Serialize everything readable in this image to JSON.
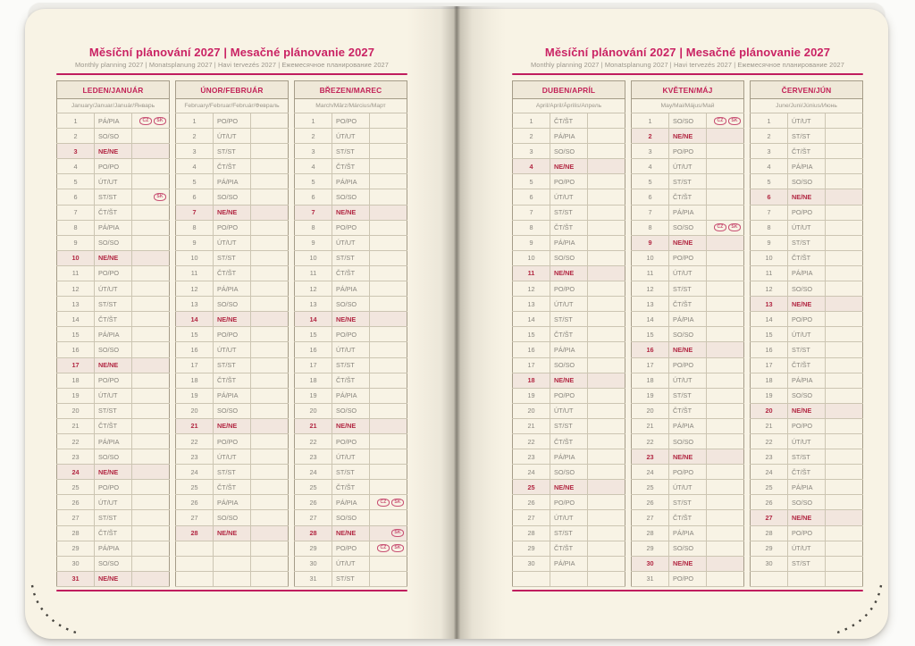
{
  "spread": {
    "title": "Měsíční plánování 2027 | Mesačné plánovanie 2027",
    "subtitle": "Monthly planning 2027 | Monatsplanung 2027 | Havi tervezés 2027 | Ежемесячное планирование 2027"
  },
  "colors": {
    "accent_pink": "#c01d5e",
    "month_header_red": "#c22257",
    "sunday_red": "#b22843",
    "page_cream": "#f8f3e5",
    "header_beige": "#efe8d8",
    "sunday_row_rose": "#f2e6de",
    "text_gray": "#87847c",
    "holiday_icon_pink": "#c85073"
  },
  "months": [
    {
      "name": "LEDEN/JANUÁR",
      "subtitle": "January/Januar/Január/Январь",
      "page": "left",
      "empty_rows": 0,
      "days": [
        {
          "n": 1,
          "d": "PÁ/PIA",
          "ic": [
            "CZ",
            "SK"
          ]
        },
        {
          "n": 2,
          "d": "SO/SO"
        },
        {
          "n": 3,
          "d": "NE/NE"
        },
        {
          "n": 4,
          "d": "PO/PO"
        },
        {
          "n": 5,
          "d": "ÚT/UT"
        },
        {
          "n": 6,
          "d": "ST/ST",
          "ic": [
            "SK"
          ]
        },
        {
          "n": 7,
          "d": "ČT/ŠT"
        },
        {
          "n": 8,
          "d": "PÁ/PIA"
        },
        {
          "n": 9,
          "d": "SO/SO"
        },
        {
          "n": 10,
          "d": "NE/NE"
        },
        {
          "n": 11,
          "d": "PO/PO"
        },
        {
          "n": 12,
          "d": "ÚT/UT"
        },
        {
          "n": 13,
          "d": "ST/ST"
        },
        {
          "n": 14,
          "d": "ČT/ŠT"
        },
        {
          "n": 15,
          "d": "PÁ/PIA"
        },
        {
          "n": 16,
          "d": "SO/SO"
        },
        {
          "n": 17,
          "d": "NE/NE"
        },
        {
          "n": 18,
          "d": "PO/PO"
        },
        {
          "n": 19,
          "d": "ÚT/UT"
        },
        {
          "n": 20,
          "d": "ST/ST"
        },
        {
          "n": 21,
          "d": "ČT/ŠT"
        },
        {
          "n": 22,
          "d": "PÁ/PIA"
        },
        {
          "n": 23,
          "d": "SO/SO"
        },
        {
          "n": 24,
          "d": "NE/NE"
        },
        {
          "n": 25,
          "d": "PO/PO"
        },
        {
          "n": 26,
          "d": "ÚT/UT"
        },
        {
          "n": 27,
          "d": "ST/ST"
        },
        {
          "n": 28,
          "d": "ČT/ŠT"
        },
        {
          "n": 29,
          "d": "PÁ/PIA"
        },
        {
          "n": 30,
          "d": "SO/SO"
        },
        {
          "n": 31,
          "d": "NE/NE"
        }
      ]
    },
    {
      "name": "ÚNOR/FEBRUÁR",
      "subtitle": "February/Februar/Február/Февраль",
      "page": "left",
      "empty_rows": 3,
      "days": [
        {
          "n": 1,
          "d": "PO/PO"
        },
        {
          "n": 2,
          "d": "ÚT/UT"
        },
        {
          "n": 3,
          "d": "ST/ST"
        },
        {
          "n": 4,
          "d": "ČT/ŠT"
        },
        {
          "n": 5,
          "d": "PÁ/PIA"
        },
        {
          "n": 6,
          "d": "SO/SO"
        },
        {
          "n": 7,
          "d": "NE/NE"
        },
        {
          "n": 8,
          "d": "PO/PO"
        },
        {
          "n": 9,
          "d": "ÚT/UT"
        },
        {
          "n": 10,
          "d": "ST/ST"
        },
        {
          "n": 11,
          "d": "ČT/ŠT"
        },
        {
          "n": 12,
          "d": "PÁ/PIA"
        },
        {
          "n": 13,
          "d": "SO/SO"
        },
        {
          "n": 14,
          "d": "NE/NE"
        },
        {
          "n": 15,
          "d": "PO/PO"
        },
        {
          "n": 16,
          "d": "ÚT/UT"
        },
        {
          "n": 17,
          "d": "ST/ST"
        },
        {
          "n": 18,
          "d": "ČT/ŠT"
        },
        {
          "n": 19,
          "d": "PÁ/PIA"
        },
        {
          "n": 20,
          "d": "SO/SO"
        },
        {
          "n": 21,
          "d": "NE/NE"
        },
        {
          "n": 22,
          "d": "PO/PO"
        },
        {
          "n": 23,
          "d": "ÚT/UT"
        },
        {
          "n": 24,
          "d": "ST/ST"
        },
        {
          "n": 25,
          "d": "ČT/ŠT"
        },
        {
          "n": 26,
          "d": "PÁ/PIA"
        },
        {
          "n": 27,
          "d": "SO/SO"
        },
        {
          "n": 28,
          "d": "NE/NE"
        }
      ]
    },
    {
      "name": "BŘEZEN/MAREC",
      "subtitle": "March/März/Március/Март",
      "page": "left",
      "empty_rows": 0,
      "days": [
        {
          "n": 1,
          "d": "PO/PO"
        },
        {
          "n": 2,
          "d": "ÚT/UT"
        },
        {
          "n": 3,
          "d": "ST/ST"
        },
        {
          "n": 4,
          "d": "ČT/ŠT"
        },
        {
          "n": 5,
          "d": "PÁ/PIA"
        },
        {
          "n": 6,
          "d": "SO/SO"
        },
        {
          "n": 7,
          "d": "NE/NE"
        },
        {
          "n": 8,
          "d": "PO/PO"
        },
        {
          "n": 9,
          "d": "ÚT/UT"
        },
        {
          "n": 10,
          "d": "ST/ST"
        },
        {
          "n": 11,
          "d": "ČT/ŠT"
        },
        {
          "n": 12,
          "d": "PÁ/PIA"
        },
        {
          "n": 13,
          "d": "SO/SO"
        },
        {
          "n": 14,
          "d": "NE/NE"
        },
        {
          "n": 15,
          "d": "PO/PO"
        },
        {
          "n": 16,
          "d": "ÚT/UT"
        },
        {
          "n": 17,
          "d": "ST/ST"
        },
        {
          "n": 18,
          "d": "ČT/ŠT"
        },
        {
          "n": 19,
          "d": "PÁ/PIA"
        },
        {
          "n": 20,
          "d": "SO/SO"
        },
        {
          "n": 21,
          "d": "NE/NE"
        },
        {
          "n": 22,
          "d": "PO/PO"
        },
        {
          "n": 23,
          "d": "ÚT/UT"
        },
        {
          "n": 24,
          "d": "ST/ST"
        },
        {
          "n": 25,
          "d": "ČT/ŠT"
        },
        {
          "n": 26,
          "d": "PÁ/PIA",
          "ic": [
            "CZ",
            "SK"
          ]
        },
        {
          "n": 27,
          "d": "SO/SO"
        },
        {
          "n": 28,
          "d": "NE/NE",
          "ic": [
            "SK"
          ]
        },
        {
          "n": 29,
          "d": "PO/PO",
          "ic": [
            "CZ",
            "SK"
          ]
        },
        {
          "n": 30,
          "d": "ÚT/UT"
        },
        {
          "n": 31,
          "d": "ST/ST"
        }
      ]
    },
    {
      "name": "DUBEN/APRÍL",
      "subtitle": "April/April/Április/Апрель",
      "page": "right",
      "empty_rows": 1,
      "days": [
        {
          "n": 1,
          "d": "ČT/ŠT"
        },
        {
          "n": 2,
          "d": "PÁ/PIA"
        },
        {
          "n": 3,
          "d": "SO/SO"
        },
        {
          "n": 4,
          "d": "NE/NE"
        },
        {
          "n": 5,
          "d": "PO/PO"
        },
        {
          "n": 6,
          "d": "ÚT/UT"
        },
        {
          "n": 7,
          "d": "ST/ST"
        },
        {
          "n": 8,
          "d": "ČT/ŠT"
        },
        {
          "n": 9,
          "d": "PÁ/PIA"
        },
        {
          "n": 10,
          "d": "SO/SO"
        },
        {
          "n": 11,
          "d": "NE/NE"
        },
        {
          "n": 12,
          "d": "PO/PO"
        },
        {
          "n": 13,
          "d": "ÚT/UT"
        },
        {
          "n": 14,
          "d": "ST/ST"
        },
        {
          "n": 15,
          "d": "ČT/ŠT"
        },
        {
          "n": 16,
          "d": "PÁ/PIA"
        },
        {
          "n": 17,
          "d": "SO/SO"
        },
        {
          "n": 18,
          "d": "NE/NE"
        },
        {
          "n": 19,
          "d": "PO/PO"
        },
        {
          "n": 20,
          "d": "ÚT/UT"
        },
        {
          "n": 21,
          "d": "ST/ST"
        },
        {
          "n": 22,
          "d": "ČT/ŠT"
        },
        {
          "n": 23,
          "d": "PÁ/PIA"
        },
        {
          "n": 24,
          "d": "SO/SO"
        },
        {
          "n": 25,
          "d": "NE/NE"
        },
        {
          "n": 26,
          "d": "PO/PO"
        },
        {
          "n": 27,
          "d": "ÚT/UT"
        },
        {
          "n": 28,
          "d": "ST/ST"
        },
        {
          "n": 29,
          "d": "ČT/ŠT"
        },
        {
          "n": 30,
          "d": "PÁ/PIA"
        }
      ]
    },
    {
      "name": "KVĚTEN/MÁJ",
      "subtitle": "May/Mai/Május/Май",
      "page": "right",
      "empty_rows": 0,
      "days": [
        {
          "n": 1,
          "d": "SO/SO",
          "ic": [
            "CZ",
            "SK"
          ]
        },
        {
          "n": 2,
          "d": "NE/NE"
        },
        {
          "n": 3,
          "d": "PO/PO"
        },
        {
          "n": 4,
          "d": "ÚT/UT"
        },
        {
          "n": 5,
          "d": "ST/ST"
        },
        {
          "n": 6,
          "d": "ČT/ŠT"
        },
        {
          "n": 7,
          "d": "PÁ/PIA"
        },
        {
          "n": 8,
          "d": "SO/SO",
          "ic": [
            "CZ",
            "SK"
          ]
        },
        {
          "n": 9,
          "d": "NE/NE"
        },
        {
          "n": 10,
          "d": "PO/PO"
        },
        {
          "n": 11,
          "d": "ÚT/UT"
        },
        {
          "n": 12,
          "d": "ST/ST"
        },
        {
          "n": 13,
          "d": "ČT/ŠT"
        },
        {
          "n": 14,
          "d": "PÁ/PIA"
        },
        {
          "n": 15,
          "d": "SO/SO"
        },
        {
          "n": 16,
          "d": "NE/NE"
        },
        {
          "n": 17,
          "d": "PO/PO"
        },
        {
          "n": 18,
          "d": "ÚT/UT"
        },
        {
          "n": 19,
          "d": "ST/ST"
        },
        {
          "n": 20,
          "d": "ČT/ŠT"
        },
        {
          "n": 21,
          "d": "PÁ/PIA"
        },
        {
          "n": 22,
          "d": "SO/SO"
        },
        {
          "n": 23,
          "d": "NE/NE"
        },
        {
          "n": 24,
          "d": "PO/PO"
        },
        {
          "n": 25,
          "d": "ÚT/UT"
        },
        {
          "n": 26,
          "d": "ST/ST"
        },
        {
          "n": 27,
          "d": "ČT/ŠT"
        },
        {
          "n": 28,
          "d": "PÁ/PIA"
        },
        {
          "n": 29,
          "d": "SO/SO"
        },
        {
          "n": 30,
          "d": "NE/NE"
        },
        {
          "n": 31,
          "d": "PO/PO"
        }
      ]
    },
    {
      "name": "ČERVEN/JÚN",
      "subtitle": "June/Juni/Június/Июнь",
      "page": "right",
      "empty_rows": 1,
      "days": [
        {
          "n": 1,
          "d": "ÚT/UT"
        },
        {
          "n": 2,
          "d": "ST/ST"
        },
        {
          "n": 3,
          "d": "ČT/ŠT"
        },
        {
          "n": 4,
          "d": "PÁ/PIA"
        },
        {
          "n": 5,
          "d": "SO/SO"
        },
        {
          "n": 6,
          "d": "NE/NE"
        },
        {
          "n": 7,
          "d": "PO/PO"
        },
        {
          "n": 8,
          "d": "ÚT/UT"
        },
        {
          "n": 9,
          "d": "ST/ST"
        },
        {
          "n": 10,
          "d": "ČT/ŠT"
        },
        {
          "n": 11,
          "d": "PÁ/PIA"
        },
        {
          "n": 12,
          "d": "SO/SO"
        },
        {
          "n": 13,
          "d": "NE/NE"
        },
        {
          "n": 14,
          "d": "PO/PO"
        },
        {
          "n": 15,
          "d": "ÚT/UT"
        },
        {
          "n": 16,
          "d": "ST/ST"
        },
        {
          "n": 17,
          "d": "ČT/ŠT"
        },
        {
          "n": 18,
          "d": "PÁ/PIA"
        },
        {
          "n": 19,
          "d": "SO/SO"
        },
        {
          "n": 20,
          "d": "NE/NE"
        },
        {
          "n": 21,
          "d": "PO/PO"
        },
        {
          "n": 22,
          "d": "ÚT/UT"
        },
        {
          "n": 23,
          "d": "ST/ST"
        },
        {
          "n": 24,
          "d": "ČT/ŠT"
        },
        {
          "n": 25,
          "d": "PÁ/PIA"
        },
        {
          "n": 26,
          "d": "SO/SO"
        },
        {
          "n": 27,
          "d": "NE/NE"
        },
        {
          "n": 28,
          "d": "PO/PO"
        },
        {
          "n": 29,
          "d": "ÚT/UT"
        },
        {
          "n": 30,
          "d": "ST/ST"
        }
      ]
    }
  ]
}
